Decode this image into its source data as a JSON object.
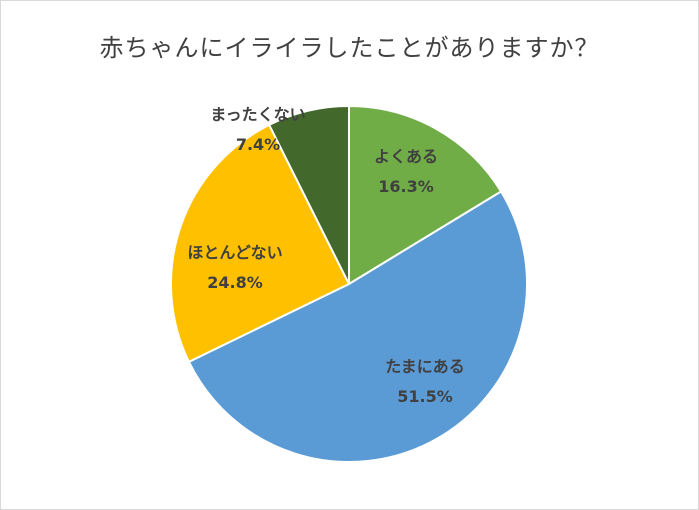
{
  "chart_data": {
    "type": "pie",
    "title": "赤ちゃんにイライラしたことがありますか？",
    "categories": [
      "よくある",
      "たまにある",
      "ほとんどない",
      "まったくない"
    ],
    "values": [
      16.3,
      51.5,
      24.8,
      7.4
    ],
    "value_labels": [
      "16.3%",
      "51.5%",
      "24.8%",
      "7.4%"
    ],
    "colors": [
      "#70ad47",
      "#5b9bd5",
      "#ffc000",
      "#43682b"
    ],
    "start": "12 o'clock",
    "direction": "clockwise",
    "legend": "none"
  }
}
